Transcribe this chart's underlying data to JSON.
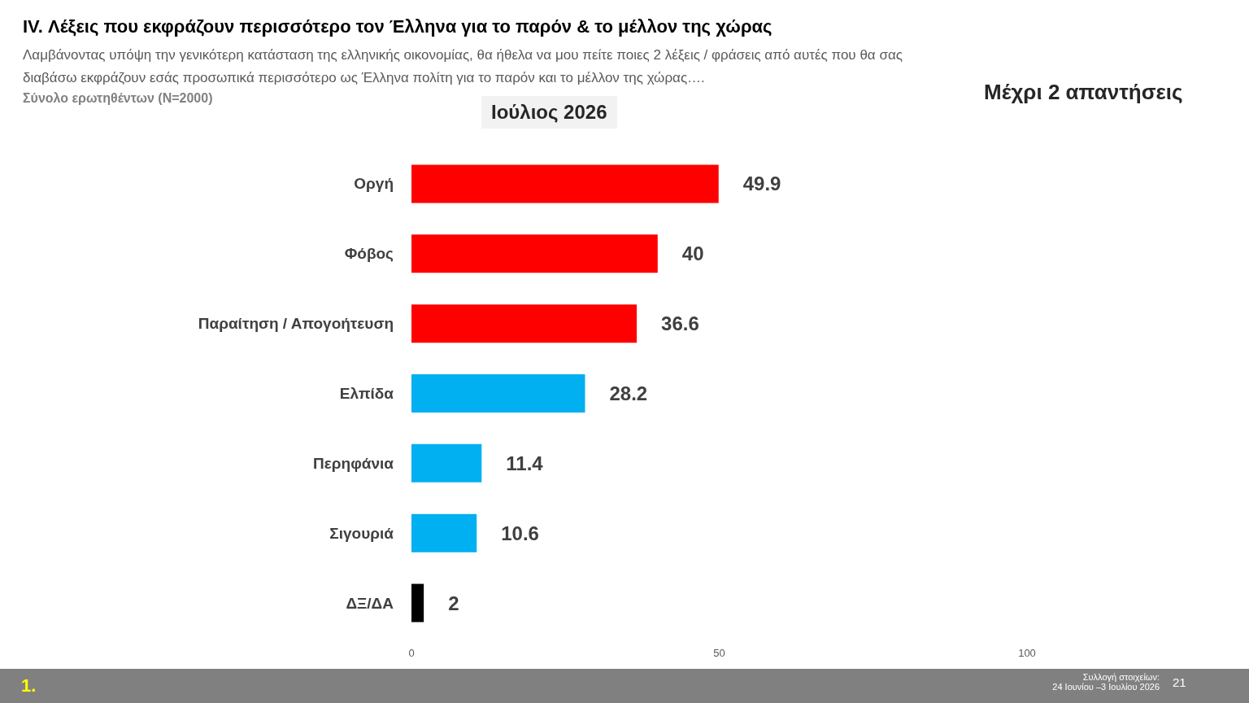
{
  "chart_data": {
    "type": "bar",
    "orientation": "horizontal",
    "title": "IV. Λέξεις που εκφράζουν περισσότερο τον Έλληνα για το παρόν & το μέλλον της χώρας",
    "subtitle": "Λαμβάνοντας υπόψη την γενικότερη κατάσταση της ελληνικής οικονομίας, θα ήθελα να μου πείτε ποιες 2  λέξεις / φράσεις από αυτές που θα σας διαβάσω εκφράζουν εσάς προσωπικά περισσότερο ως Έλληνα πολίτη για το παρόν και το μέλλον της χώρας….",
    "categories": [
      "Οργή",
      "Φόβος",
      "Παραίτηση / Απογοήτευση",
      "Ελπίδα",
      "Περηφάνια",
      "Σιγουριά",
      "ΔΞ/ΔΑ"
    ],
    "values": [
      49.9,
      40,
      36.6,
      28.2,
      11.4,
      10.6,
      2
    ],
    "colors": [
      "#ff0000",
      "#ff0000",
      "#ff0000",
      "#00b0f0",
      "#00b0f0",
      "#00b0f0",
      "#000000"
    ],
    "xlim": [
      0,
      100
    ],
    "xticks": [
      0,
      50,
      100
    ],
    "grid": false,
    "data_labels": true,
    "annotations": [
      "Σύνολο ερωτηθέντων (N=2000)",
      "Ιούλιος 2026",
      "Μέχρι 2 απαντήσεις",
      "Συλλογή στοιχείων:\n24 Ιουνίου –3 Ιουλίου 2026",
      "1.",
      "21"
    ]
  }
}
